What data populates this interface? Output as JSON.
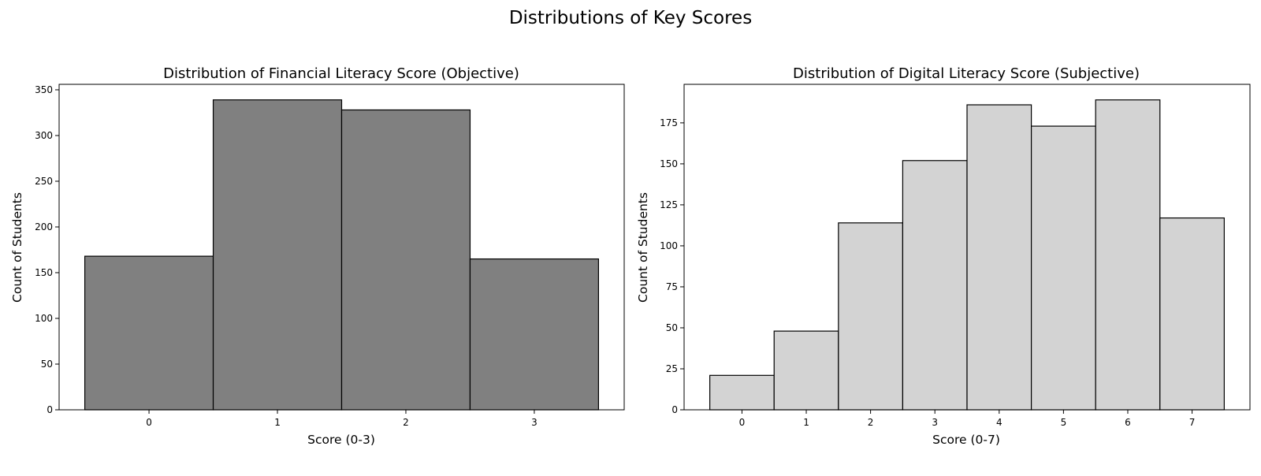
{
  "suptitle": "Distributions of Key Scores",
  "chart_data": [
    {
      "type": "bar",
      "title": "Distribution of Financial Literacy Score (Objective)",
      "xlabel": "Score (0-3)",
      "ylabel": "Count of Students",
      "categories": [
        "0",
        "1",
        "2",
        "3"
      ],
      "values": [
        168,
        339,
        328,
        165
      ],
      "xlim": [
        -0.7,
        3.7
      ],
      "ylim": [
        0,
        356
      ],
      "yticks": [
        0,
        50,
        100,
        150,
        200,
        250,
        300,
        350
      ],
      "bar_color": "#808080",
      "edge_color": "#000000",
      "grid": false
    },
    {
      "type": "bar",
      "title": "Distribution of Digital Literacy Score (Subjective)",
      "xlabel": "Score (0-7)",
      "ylabel": "Count of Students",
      "categories": [
        "0",
        "1",
        "2",
        "3",
        "4",
        "5",
        "6",
        "7"
      ],
      "values": [
        21,
        48,
        114,
        152,
        186,
        173,
        189,
        117
      ],
      "xlim": [
        -0.9,
        7.9
      ],
      "ylim": [
        0,
        198.5
      ],
      "yticks": [
        0,
        25,
        50,
        75,
        100,
        125,
        150,
        175
      ],
      "bar_color": "#d3d3d3",
      "edge_color": "#000000",
      "grid": false
    }
  ]
}
